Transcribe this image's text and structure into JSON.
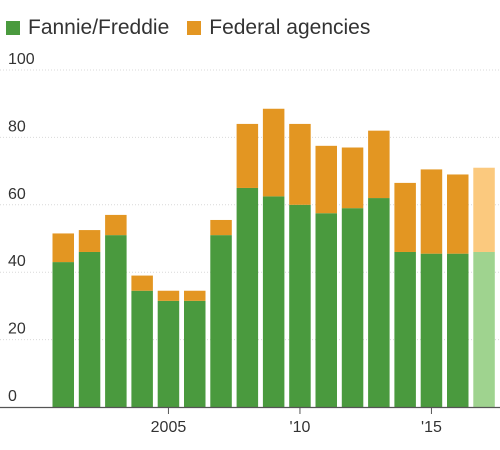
{
  "chart_data": {
    "type": "bar",
    "stacked": true,
    "series": [
      {
        "name": "Fannie/Freddie",
        "color": "#4a9a3e",
        "values": [
          43,
          46,
          51,
          34.5,
          31.5,
          31.5,
          51,
          65,
          62.5,
          60,
          57.5,
          59,
          62,
          46,
          45.5,
          45.5,
          46
        ]
      },
      {
        "name": "Federal agencies",
        "color": "#e39622",
        "values": [
          8.5,
          6.5,
          6,
          4.5,
          3,
          3,
          4.5,
          19,
          26,
          24,
          20,
          18,
          20,
          20.5,
          25,
          23.5,
          25
        ]
      }
    ],
    "categories": [
      "2001",
      "2002",
      "2003",
      "2004",
      "2005",
      "2006",
      "2007",
      "2008",
      "2009",
      "2010",
      "2011",
      "2012",
      "2013",
      "2014",
      "2015",
      "2016",
      "2017"
    ],
    "highlight_last": true,
    "light_colors": {
      "Fannie/Freddie": "#9fd38f",
      "Federal agencies": "#fbc97e"
    },
    "ylim": [
      0,
      100
    ],
    "yticks": [
      "0",
      "20",
      "40",
      "60",
      "80",
      "100"
    ],
    "xtick_labels": [
      {
        "category": "2005",
        "label": "2005"
      },
      {
        "category": "2010",
        "label": "'10"
      },
      {
        "category": "2015",
        "label": "'15"
      }
    ],
    "grid": true
  }
}
